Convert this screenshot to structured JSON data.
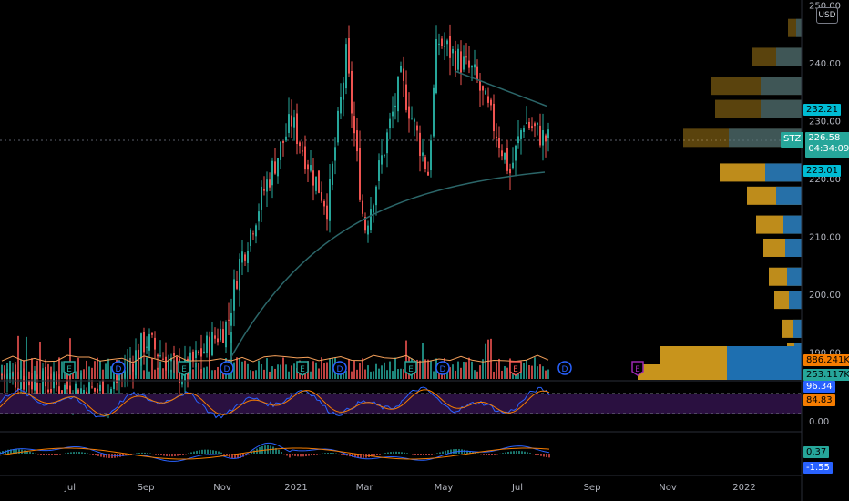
{
  "currency": "USD",
  "price_axis": {
    "ticks": [
      "250.00",
      "240.00",
      "230.00",
      "220.00",
      "210.00",
      "200.00",
      "190.00"
    ],
    "tags": [
      {
        "label": "232.21",
        "bg": "#00bcd4",
        "fg": "#000000"
      },
      {
        "label": "223.01",
        "bg": "#00bcd4",
        "fg": "#000000"
      }
    ],
    "current_price": {
      "symbol": "STZ",
      "price": "226.58",
      "countdown": "04:34:09",
      "color": "#26a69a"
    }
  },
  "volume": {
    "tags": [
      {
        "label": "886.241K",
        "bg": "#f57c00",
        "fg": "#000000"
      },
      {
        "label": "253.117K",
        "bg": "#26a69a",
        "fg": "#000000"
      }
    ]
  },
  "oscillator": {
    "ticks": [
      "0.00"
    ],
    "tags": [
      {
        "label": "96.34",
        "bg": "#2962ff",
        "fg": "#ffffff"
      },
      {
        "label": "84.83",
        "bg": "#f57c00",
        "fg": "#000000"
      }
    ]
  },
  "macd": {
    "tags": [
      {
        "label": "0.37",
        "bg": "#26a69a",
        "fg": "#000000"
      },
      {
        "label": "-1.55",
        "bg": "#2962ff",
        "fg": "#ffffff"
      }
    ]
  },
  "time_axis": [
    "Jul",
    "Sep",
    "Nov",
    "2021",
    "Mar",
    "May",
    "Jul",
    "Sep",
    "Nov",
    "2022"
  ],
  "events": [
    {
      "type": "E",
      "color": "#26a69a"
    },
    {
      "type": "D",
      "color": "#2962ff"
    },
    {
      "type": "E",
      "color": "#26a69a"
    },
    {
      "type": "D",
      "color": "#2962ff"
    },
    {
      "type": "E",
      "color": "#26a69a"
    },
    {
      "type": "D",
      "color": "#2962ff"
    },
    {
      "type": "E",
      "color": "#26a69a"
    },
    {
      "type": "D",
      "color": "#2962ff"
    },
    {
      "type": "E",
      "color": "#ef5350"
    },
    {
      "type": "D",
      "color": "#2962ff"
    },
    {
      "type": "E",
      "color": "#9c27b0"
    }
  ],
  "colors": {
    "up": "#26a69a",
    "down": "#ef5350",
    "ma": "#2b6669",
    "vol_ma": "#f5a05a",
    "vp_up": "#1e6fb0",
    "vp_down": "#c8941c",
    "osc_bg": "#2a1040",
    "stoch_k": "#2962ff",
    "stoch_d": "#f57c00"
  },
  "chart_data": {
    "type": "candlestick",
    "symbol": "STZ",
    "price_range": [
      185,
      255
    ],
    "x": [
      "Jul",
      "Sep",
      "Nov",
      "2021",
      "Mar",
      "May",
      "Jul"
    ],
    "close_path": [
      [
        "Jul",
        186
      ],
      [
        "Sep",
        188
      ],
      [
        "Nov",
        197
      ],
      [
        "2021",
        229
      ],
      [
        "Mar",
        212
      ],
      [
        "May",
        239
      ],
      [
        "Jul",
        224
      ],
      [
        "end",
        226.58
      ]
    ],
    "moving_average_end": 223.01,
    "ma_upper_end": 232.21
  }
}
